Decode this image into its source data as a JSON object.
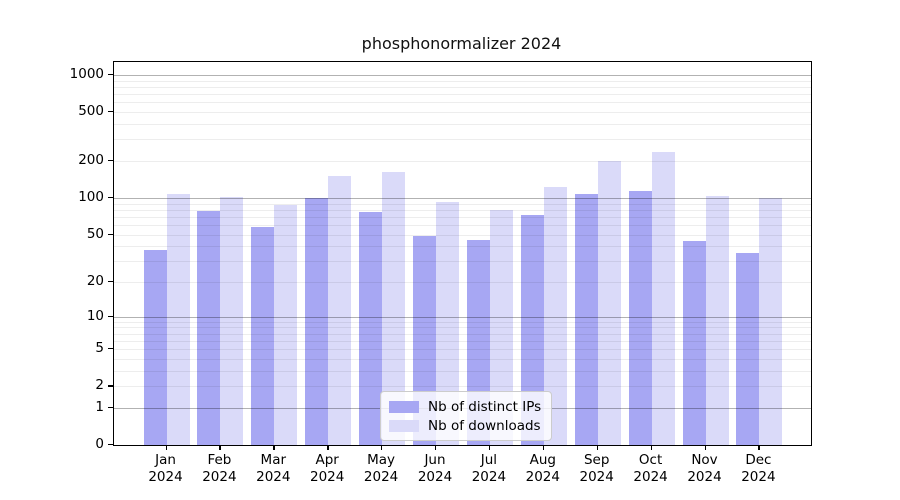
{
  "chart_data": {
    "type": "bar",
    "title": "phosphonormalizer 2024",
    "year": "2024",
    "categories": [
      "Jan",
      "Feb",
      "Mar",
      "Apr",
      "May",
      "Jun",
      "Jul",
      "Aug",
      "Sep",
      "Oct",
      "Nov",
      "Dec"
    ],
    "series": [
      {
        "name": "Nb of distinct IPs",
        "color": "#a7a7f3",
        "values": [
          37,
          78,
          58,
          100,
          77,
          49,
          45,
          72,
          107,
          115,
          44,
          35
        ]
      },
      {
        "name": "Nb of downloads",
        "color": "#dadaf9",
        "values": [
          108,
          101,
          87,
          150,
          163,
          93,
          80,
          123,
          200,
          238,
          104,
          100
        ]
      }
    ],
    "yscale": "log1p",
    "ylim": [
      0,
      1300
    ],
    "yticks": [
      1000,
      500,
      200,
      100,
      50,
      20,
      10,
      5,
      2,
      1,
      0
    ],
    "grid": "on",
    "legend_position": "lower-center"
  }
}
